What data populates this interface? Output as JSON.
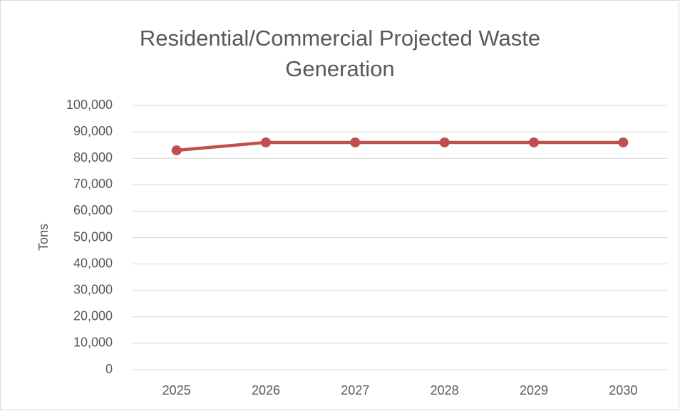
{
  "chart_data": {
    "type": "line",
    "title": "Residential/Commercial Projected Waste Generation",
    "y_label": "Tons",
    "categories": [
      "2025",
      "2026",
      "2027",
      "2028",
      "2029",
      "2030"
    ],
    "series": [
      {
        "name": "Tons",
        "color": "#c0504d",
        "values": [
          83000,
          86000,
          86000,
          86000,
          86000,
          86000
        ]
      }
    ],
    "ylim": [
      0,
      100000
    ],
    "yticks": [
      0,
      {
        "value": 10000,
        "label": "10,000"
      },
      {
        "value": 20000,
        "label": "20,000"
      },
      {
        "value": 30000,
        "label": "30,000"
      },
      {
        "value": 40000,
        "label": "40,000"
      },
      {
        "value": 50000,
        "label": "50,000"
      },
      {
        "value": 60000,
        "label": "60,000"
      },
      {
        "value": 70000,
        "label": "70,000"
      },
      {
        "value": 80000,
        "label": "80,000"
      },
      {
        "value": 90000,
        "label": "90,000"
      },
      {
        "value": 100000,
        "label": "100,000"
      }
    ],
    "grid": true
  }
}
